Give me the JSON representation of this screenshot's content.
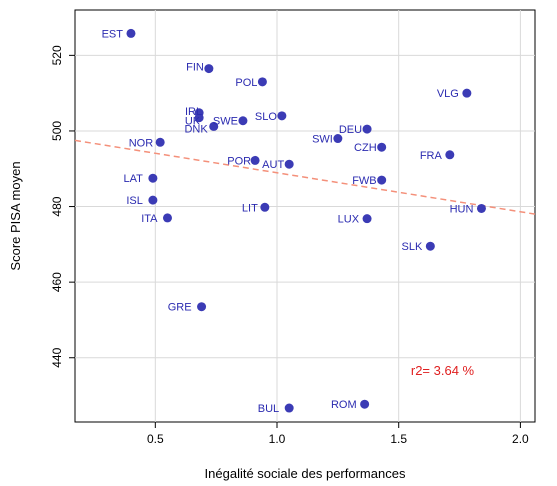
{
  "chart_data": {
    "type": "scatter",
    "xlabel": "Inégalité sociale des performances",
    "ylabel": "Score PISA moyen",
    "xlim": [
      0.17,
      2.06
    ],
    "ylim": [
      423,
      532
    ],
    "xticks": [
      0.5,
      1.0,
      1.5,
      2.0
    ],
    "xtick_labels": [
      "0.5",
      "1.0",
      "1.5",
      "2.0"
    ],
    "yticks": [
      440,
      460,
      480,
      500,
      520
    ],
    "ytick_labels": [
      "440",
      "460",
      "480",
      "500",
      "520"
    ],
    "grid": true,
    "point_color": "#3b3bb5",
    "label_color": "#2b2bb0",
    "points": [
      {
        "label": "EST",
        "x": 0.4,
        "y": 525.8
      },
      {
        "label": "FIN",
        "x": 0.72,
        "y": 516.5
      },
      {
        "label": "POL",
        "x": 0.94,
        "y": 513.0
      },
      {
        "label": "VLG",
        "x": 1.78,
        "y": 510.0
      },
      {
        "label": "IRL",
        "x": 0.68,
        "y": 504.8
      },
      {
        "label": "UK",
        "x": 0.68,
        "y": 503.5
      },
      {
        "label": "SLO",
        "x": 1.02,
        "y": 504.0
      },
      {
        "label": "SWE",
        "x": 0.86,
        "y": 502.7
      },
      {
        "label": "DNK",
        "x": 0.74,
        "y": 501.2
      },
      {
        "label": "DEU",
        "x": 1.37,
        "y": 500.5
      },
      {
        "label": "SWI",
        "x": 1.25,
        "y": 498.0
      },
      {
        "label": "NOR",
        "x": 0.52,
        "y": 497.0
      },
      {
        "label": "CZH",
        "x": 1.43,
        "y": 495.7
      },
      {
        "label": "FRA",
        "x": 1.71,
        "y": 493.7
      },
      {
        "label": "POR",
        "x": 0.91,
        "y": 492.2
      },
      {
        "label": "AUT",
        "x": 1.05,
        "y": 491.2
      },
      {
        "label": "LAT",
        "x": 0.49,
        "y": 487.5
      },
      {
        "label": "FWB",
        "x": 1.43,
        "y": 487.0
      },
      {
        "label": "ISL",
        "x": 0.49,
        "y": 481.7
      },
      {
        "label": "LIT",
        "x": 0.95,
        "y": 479.8
      },
      {
        "label": "HUN",
        "x": 1.84,
        "y": 479.5
      },
      {
        "label": "ITA",
        "x": 0.55,
        "y": 477.0
      },
      {
        "label": "LUX",
        "x": 1.37,
        "y": 476.8
      },
      {
        "label": "SLK",
        "x": 1.63,
        "y": 469.5
      },
      {
        "label": "GRE",
        "x": 0.69,
        "y": 453.5
      },
      {
        "label": "ROM",
        "x": 1.36,
        "y": 427.7
      },
      {
        "label": "BUL",
        "x": 1.05,
        "y": 426.7
      }
    ],
    "trend_line": {
      "x": [
        0.17,
        2.06
      ],
      "y": [
        497.5,
        478.0
      ],
      "color": "#f4907a",
      "style": "dashed"
    },
    "annotation": {
      "text": "r2= 3.64 %",
      "x": 1.68,
      "y": 435.5,
      "color": "#e02020"
    }
  }
}
